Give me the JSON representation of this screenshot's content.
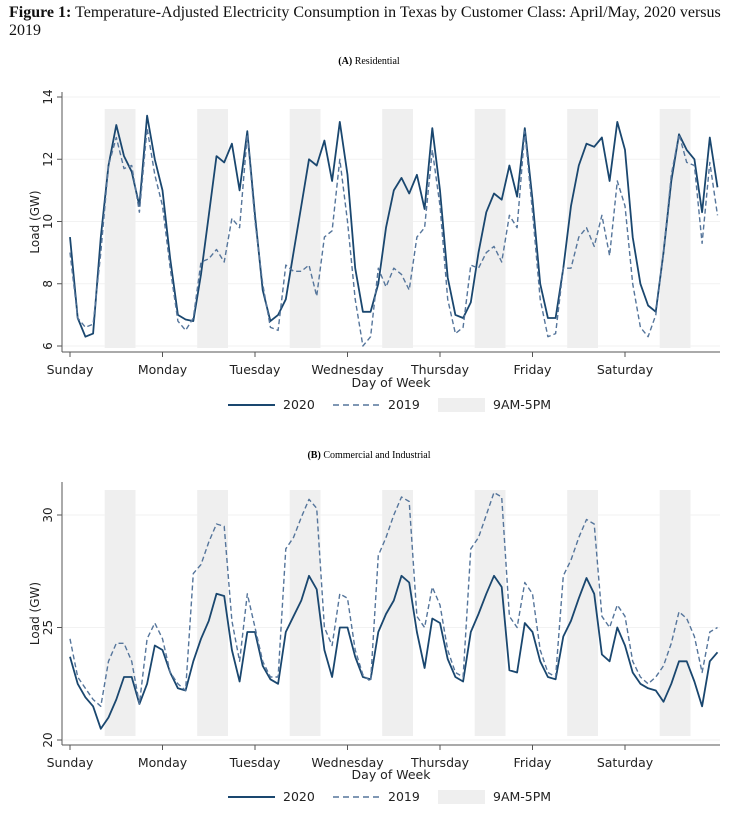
{
  "figure": {
    "label": "Figure 1:",
    "caption": "Temperature-Adjusted Electricity Consumption in Texas by Customer Class: April/May, 2020 versus 2019"
  },
  "chart_data": [
    {
      "type": "line",
      "panel_label": "(A)",
      "title": "Residential",
      "xlabel": "Day of Week",
      "ylabel": "Load (GW)",
      "ylim": [
        6,
        14
      ],
      "yticks": [
        6,
        8,
        10,
        12,
        14
      ],
      "x_unit": "hours since Sunday 00:00, 2-hour steps",
      "xlim": [
        0,
        168
      ],
      "xtick_labels": [
        "Sunday",
        "Monday",
        "Tuesday",
        "Wednesday",
        "Thursday",
        "Friday",
        "Saturday"
      ],
      "shaded": {
        "label": "9AM-5PM",
        "hours": [
          9,
          17
        ]
      },
      "legend": [
        "2020",
        "2019",
        "9AM-5PM"
      ],
      "legend_position": "bottom",
      "series": [
        {
          "name": "2020",
          "style": "solid",
          "values": [
            9.5,
            6.9,
            6.3,
            6.4,
            9.5,
            11.8,
            13.1,
            12.1,
            11.6,
            10.5,
            13.4,
            12.0,
            11.0,
            8.8,
            7.0,
            6.85,
            6.8,
            8.3,
            10.2,
            12.1,
            11.9,
            12.5,
            11.0,
            12.9,
            10.2,
            7.8,
            6.8,
            7.0,
            7.5,
            9.0,
            10.5,
            12.0,
            11.8,
            12.6,
            11.3,
            13.2,
            11.5,
            8.5,
            7.1,
            7.1,
            8.0,
            9.8,
            11.0,
            11.4,
            10.9,
            11.5,
            10.4,
            13.0,
            11.0,
            8.2,
            7.0,
            6.9,
            7.4,
            9.0,
            10.3,
            10.9,
            10.7,
            11.8,
            10.8,
            13.0,
            10.7,
            8.0,
            6.9,
            6.9,
            8.5,
            10.5,
            11.8,
            12.5,
            12.4,
            12.7,
            11.3,
            13.2,
            12.3,
            9.5,
            8.0,
            7.3,
            7.1,
            9.0,
            11.3,
            12.8,
            12.3,
            12.0,
            10.3,
            12.7,
            11.1
          ]
        },
        {
          "name": "2019",
          "style": "dashed",
          "values": [
            9.0,
            6.9,
            6.6,
            6.7,
            9.0,
            11.8,
            12.7,
            11.7,
            11.8,
            10.3,
            13.0,
            11.5,
            10.5,
            8.5,
            6.8,
            6.5,
            6.9,
            8.7,
            8.8,
            9.1,
            8.7,
            10.1,
            9.8,
            12.8,
            10.0,
            8.0,
            6.6,
            6.5,
            8.6,
            8.4,
            8.4,
            8.6,
            7.6,
            9.5,
            9.7,
            12.0,
            10.0,
            7.5,
            6.0,
            6.3,
            8.5,
            7.9,
            8.5,
            8.3,
            7.8,
            9.5,
            9.8,
            12.3,
            10.5,
            7.5,
            6.4,
            6.6,
            8.6,
            8.5,
            9.0,
            9.2,
            8.7,
            10.2,
            9.8,
            12.9,
            10.3,
            7.5,
            6.3,
            6.4,
            8.5,
            8.5,
            9.5,
            9.8,
            9.2,
            10.2,
            8.9,
            11.3,
            10.5,
            8.0,
            6.6,
            6.3,
            7.0,
            9.0,
            11.5,
            12.8,
            11.9,
            11.8,
            9.3,
            11.9,
            10.2
          ]
        }
      ]
    },
    {
      "type": "line",
      "panel_label": "(B)",
      "title": "Commercial and Industrial",
      "xlabel": "Day of Week",
      "ylabel": "Load (GW)",
      "ylim": [
        20,
        31.5
      ],
      "yticks": [
        20,
        25,
        30
      ],
      "x_unit": "hours since Sunday 00:00, 2-hour steps",
      "xlim": [
        0,
        168
      ],
      "xtick_labels": [
        "Sunday",
        "Monday",
        "Tuesday",
        "Wednesday",
        "Thursday",
        "Friday",
        "Saturday"
      ],
      "shaded": {
        "label": "9AM-5PM",
        "hours": [
          9,
          17
        ]
      },
      "legend": [
        "2020",
        "2019",
        "9AM-5PM"
      ],
      "legend_position": "bottom",
      "series": [
        {
          "name": "2020",
          "style": "solid",
          "values": [
            23.7,
            22.5,
            21.9,
            21.5,
            20.5,
            21.0,
            21.8,
            22.8,
            22.8,
            21.6,
            22.5,
            24.2,
            24.0,
            23.0,
            22.3,
            22.2,
            23.5,
            24.5,
            25.3,
            26.5,
            26.4,
            24.0,
            22.6,
            24.8,
            24.8,
            23.3,
            22.7,
            22.5,
            24.8,
            25.5,
            26.2,
            27.3,
            26.7,
            24.0,
            22.8,
            25.0,
            25.0,
            23.7,
            22.8,
            22.7,
            24.8,
            25.6,
            26.2,
            27.3,
            27.0,
            24.8,
            23.2,
            25.4,
            25.2,
            23.6,
            22.8,
            22.6,
            24.8,
            25.6,
            26.5,
            27.3,
            26.8,
            23.1,
            23.0,
            25.2,
            24.8,
            23.5,
            22.8,
            22.7,
            24.6,
            25.3,
            26.3,
            27.2,
            26.5,
            23.8,
            23.5,
            25.0,
            24.2,
            23.0,
            22.5,
            22.3,
            22.2,
            21.7,
            22.5,
            23.5,
            23.5,
            22.6,
            21.5,
            23.5,
            23.9
          ]
        },
        {
          "name": "2019",
          "style": "dashed",
          "values": [
            24.5,
            22.8,
            22.3,
            21.8,
            21.5,
            23.5,
            24.3,
            24.3,
            23.5,
            21.6,
            24.5,
            25.2,
            24.5,
            23.0,
            22.5,
            22.2,
            27.4,
            27.8,
            28.8,
            29.6,
            29.5,
            25.3,
            23.5,
            26.5,
            25.0,
            23.5,
            22.8,
            22.8,
            28.5,
            29.0,
            29.9,
            30.7,
            30.3,
            25.0,
            24.2,
            26.5,
            26.3,
            24.0,
            22.9,
            22.6,
            28.2,
            29.0,
            30.0,
            30.8,
            30.6,
            25.5,
            25.0,
            26.8,
            26.0,
            24.0,
            23.0,
            22.8,
            28.5,
            29.0,
            30.0,
            31.0,
            30.8,
            25.5,
            25.0,
            27.0,
            26.5,
            24.0,
            23.0,
            22.8,
            27.3,
            28.0,
            29.0,
            29.8,
            29.6,
            25.5,
            25.0,
            26.0,
            25.5,
            23.5,
            22.8,
            22.5,
            22.8,
            23.3,
            24.3,
            25.7,
            25.4,
            24.6,
            23.0,
            24.8,
            25.0
          ]
        }
      ]
    }
  ],
  "colors": {
    "line2020": "#1a476f",
    "line2019": "#55759b",
    "shade": "#efefef",
    "axis": "#555555"
  }
}
